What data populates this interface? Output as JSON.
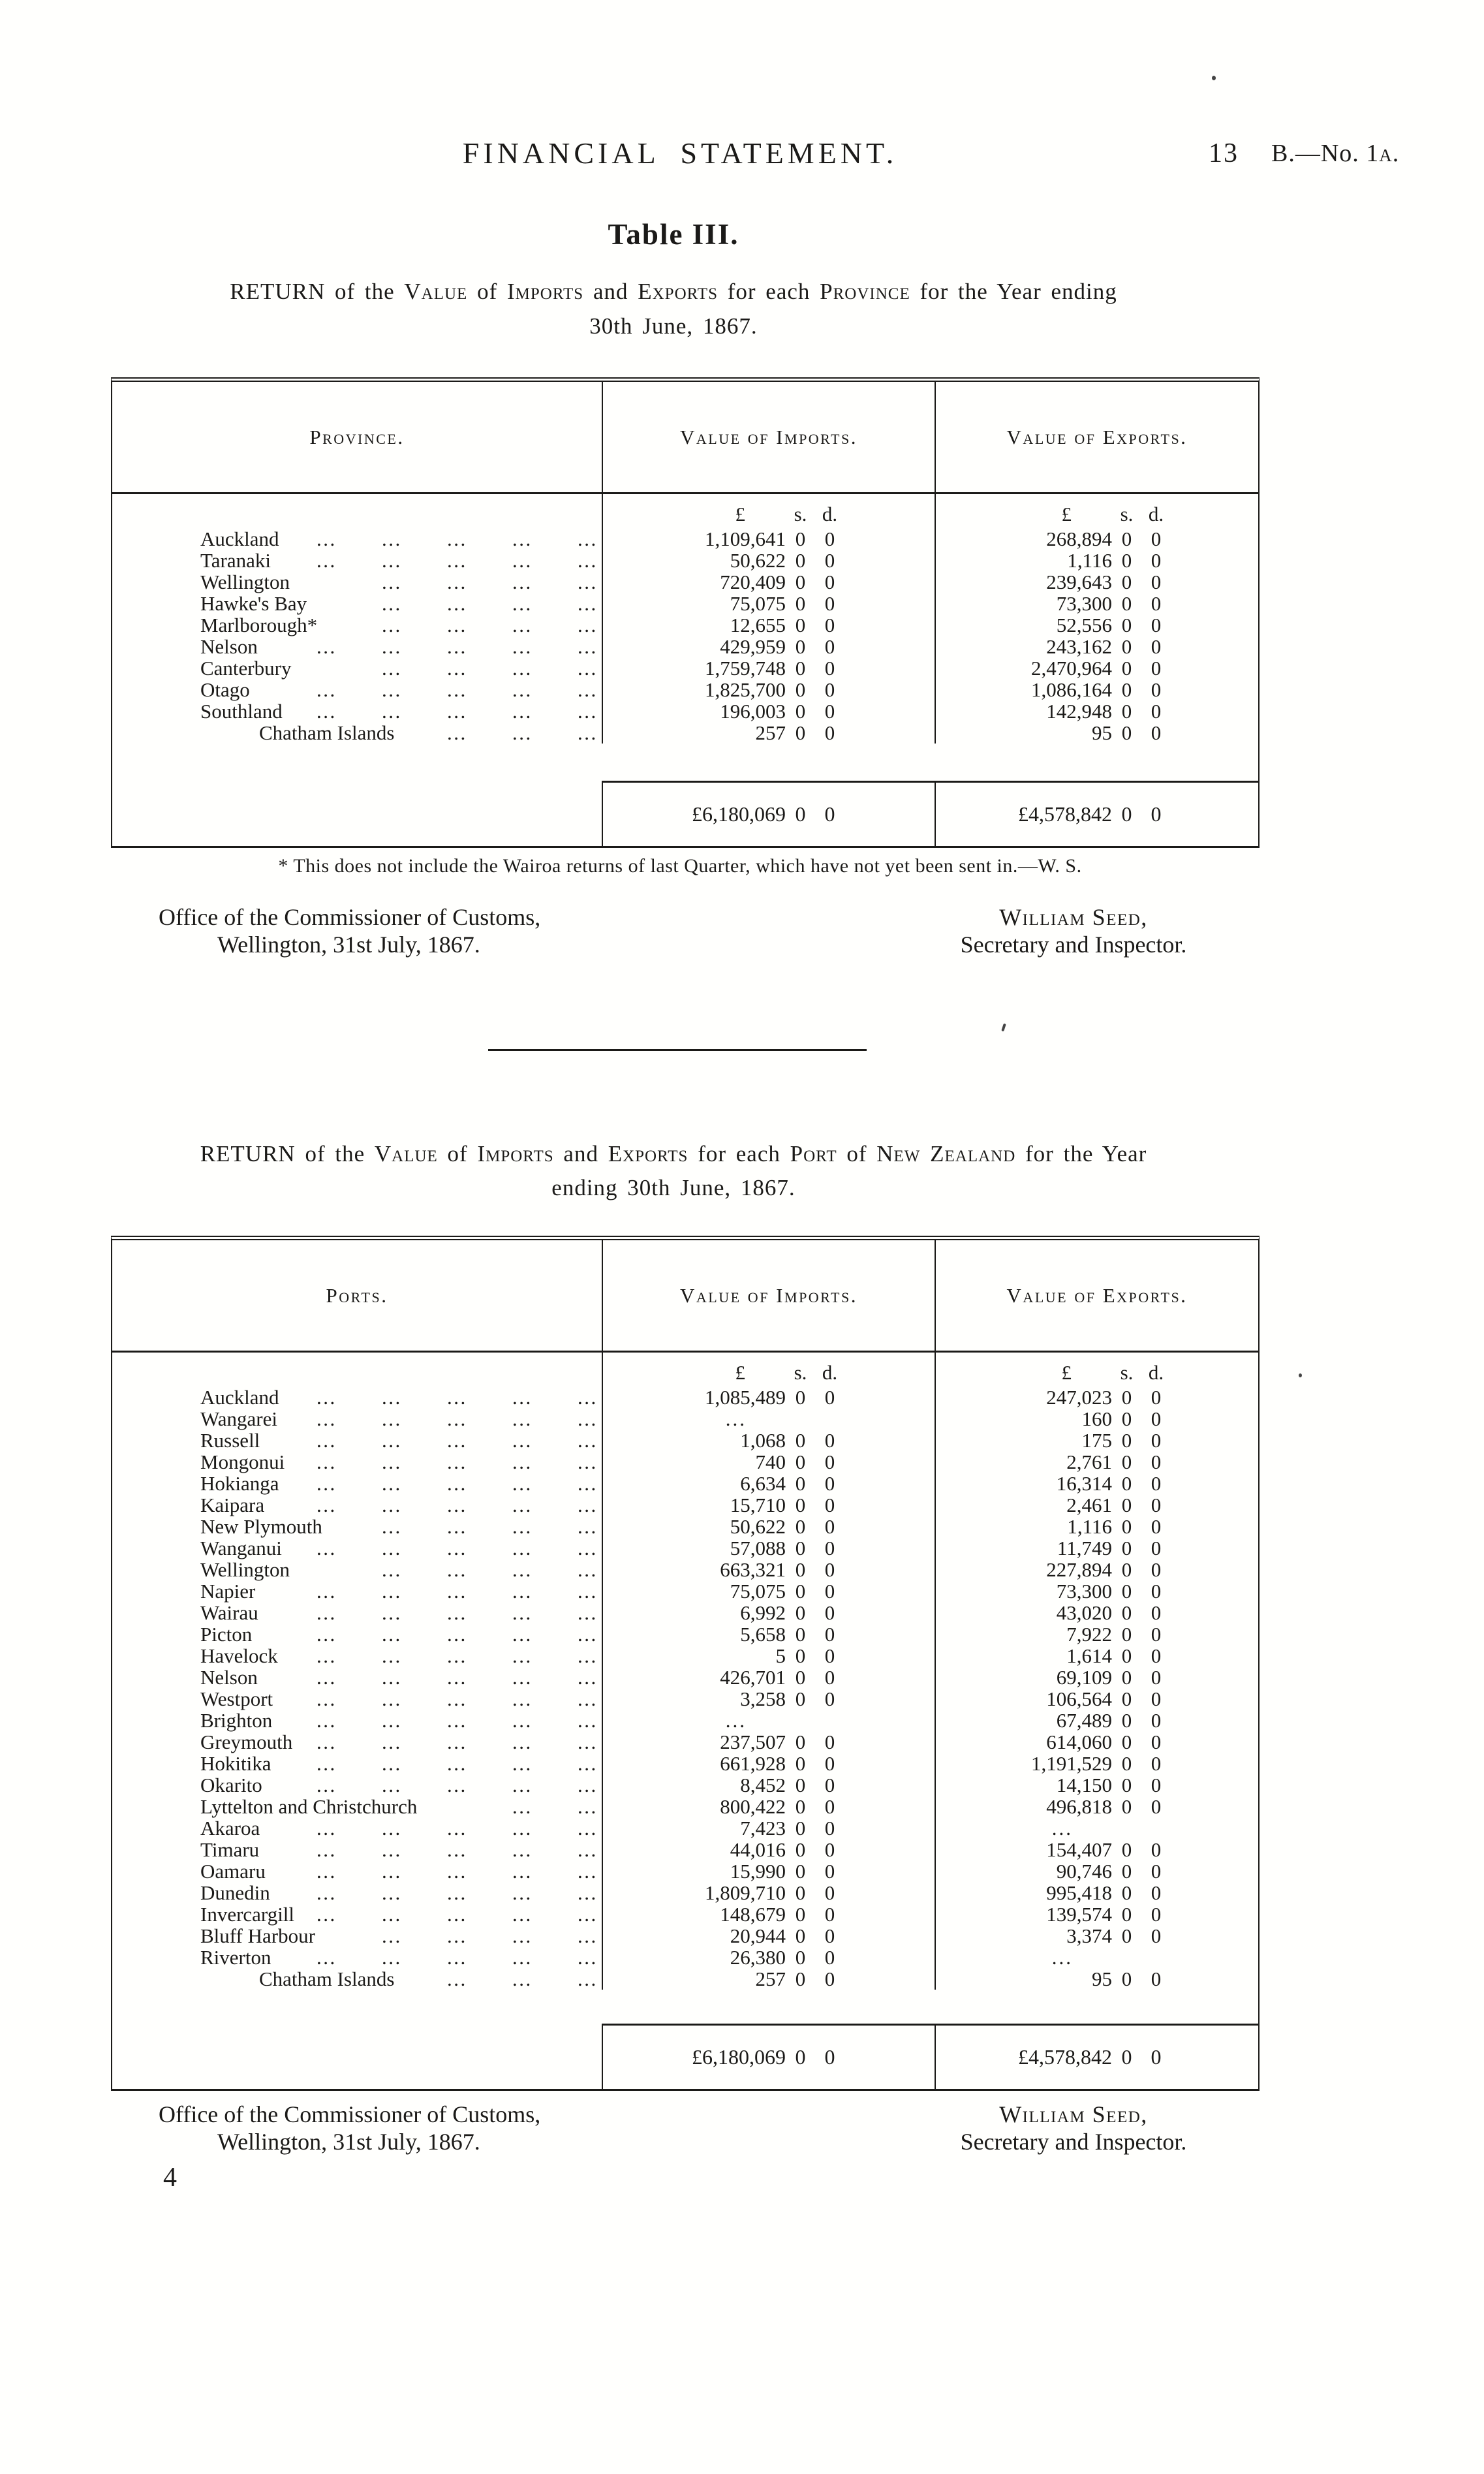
{
  "header": {
    "title": "FINANCIAL STATEMENT.",
    "page_number": "13",
    "doc_ref": [
      {
        "t": "B.—No. 1"
      },
      {
        "t": "a.",
        "sc": true
      }
    ]
  },
  "section1": {
    "table_label": "Table III.",
    "caption_line1": [
      {
        "t": "RETURN"
      },
      {
        "t": " of the "
      },
      {
        "t": "Value",
        "sc": true
      },
      {
        "t": " of "
      },
      {
        "t": "Imports",
        "sc": true
      },
      {
        "t": " and "
      },
      {
        "t": "Exports",
        "sc": true
      },
      {
        "t": " for each "
      },
      {
        "t": "Province",
        "sc": true
      },
      {
        "t": " for the Year ending"
      }
    ],
    "caption_line2": "30th June, 1867.",
    "table": {
      "columns": [
        "Province.",
        "Value of Imports.",
        "Value of Exports."
      ],
      "money_cols": {
        "pound": "£",
        "shillings": "s.",
        "pence": "d."
      },
      "rows": [
        {
          "name": "Auckland",
          "dots": 5,
          "imp": [
            "1,109,641",
            "0",
            "0"
          ],
          "exp": [
            "268,894",
            "0",
            "0"
          ]
        },
        {
          "name": "Taranaki",
          "dots": 5,
          "imp": [
            "50,622",
            "0",
            "0"
          ],
          "exp": [
            "1,116",
            "0",
            "0"
          ]
        },
        {
          "name": "Wellington",
          "dots": 4,
          "imp": [
            "720,409",
            "0",
            "0"
          ],
          "exp": [
            "239,643",
            "0",
            "0"
          ]
        },
        {
          "name": "Hawke's Bay",
          "dots": 4,
          "imp": [
            "75,075",
            "0",
            "0"
          ],
          "exp": [
            "73,300",
            "0",
            "0"
          ]
        },
        {
          "name": "Marlborough*",
          "dots": 4,
          "imp": [
            "12,655",
            "0",
            "0"
          ],
          "exp": [
            "52,556",
            "0",
            "0"
          ]
        },
        {
          "name": "Nelson",
          "dots": 5,
          "imp": [
            "429,959",
            "0",
            "0"
          ],
          "exp": [
            "243,162",
            "0",
            "0"
          ]
        },
        {
          "name": "Canterbury",
          "dots": 4,
          "imp": [
            "1,759,748",
            "0",
            "0"
          ],
          "exp": [
            "2,470,964",
            "0",
            "0"
          ]
        },
        {
          "name": "Otago",
          "dots": 5,
          "imp": [
            "1,825,700",
            "0",
            "0"
          ],
          "exp": [
            "1,086,164",
            "0",
            "0"
          ]
        },
        {
          "name": "Southland",
          "dots": 5,
          "imp": [
            "196,003",
            "0",
            "0"
          ],
          "exp": [
            "142,948",
            "0",
            "0"
          ]
        },
        {
          "name": "Chatham Islands",
          "indent": true,
          "dots": 3,
          "imp": [
            "257",
            "0",
            "0"
          ],
          "exp": [
            "95",
            "0",
            "0"
          ]
        }
      ],
      "totals": {
        "imports": [
          "£6,180,069",
          "0",
          "0"
        ],
        "exports": [
          "£4,578,842",
          "0",
          "0"
        ]
      }
    },
    "footnote": "* This does not include the Wairoa returns of last Quarter, which have not yet been sent in.—W. S.",
    "office": {
      "line1": "Office of the Commissioner of Customs,",
      "line2": "Wellington, 31st July, 1867."
    },
    "signature": {
      "name": "William Seed,",
      "title": "Secretary and Inspector."
    }
  },
  "section2": {
    "caption_line1": [
      {
        "t": "RETURN"
      },
      {
        "t": " of the "
      },
      {
        "t": "Value",
        "sc": true
      },
      {
        "t": " of "
      },
      {
        "t": "Imports",
        "sc": true
      },
      {
        "t": " and "
      },
      {
        "t": "Exports",
        "sc": true
      },
      {
        "t": " for each "
      },
      {
        "t": "Port",
        "sc": true
      },
      {
        "t": " of "
      },
      {
        "t": "New Zealand",
        "sc": true
      },
      {
        "t": " for the Year"
      }
    ],
    "caption_line2": "ending 30th June, 1867.",
    "table": {
      "columns": [
        "Ports.",
        "Value of Imports.",
        "Value of Exports."
      ],
      "money_cols": {
        "pound": "£",
        "shillings": "s.",
        "pence": "d."
      },
      "rows": [
        {
          "name": "Auckland",
          "dots": 5,
          "imp": [
            "1,085,489",
            "0",
            "0"
          ],
          "exp": [
            "247,023",
            "0",
            "0"
          ]
        },
        {
          "name": "Wangarei",
          "dots": 5,
          "imp": null,
          "exp": [
            "160",
            "0",
            "0"
          ]
        },
        {
          "name": "Russell",
          "dots": 5,
          "imp": [
            "1,068",
            "0",
            "0"
          ],
          "exp": [
            "175",
            "0",
            "0"
          ]
        },
        {
          "name": "Mongonui",
          "dots": 5,
          "imp": [
            "740",
            "0",
            "0"
          ],
          "exp": [
            "2,761",
            "0",
            "0"
          ]
        },
        {
          "name": "Hokianga",
          "dots": 5,
          "imp": [
            "6,634",
            "0",
            "0"
          ],
          "exp": [
            "16,314",
            "0",
            "0"
          ]
        },
        {
          "name": "Kaipara",
          "dots": 5,
          "imp": [
            "15,710",
            "0",
            "0"
          ],
          "exp": [
            "2,461",
            "0",
            "0"
          ]
        },
        {
          "name": "New Plymouth",
          "dots": 4,
          "imp": [
            "50,622",
            "0",
            "0"
          ],
          "exp": [
            "1,116",
            "0",
            "0"
          ]
        },
        {
          "name": "Wanganui",
          "dots": 5,
          "imp": [
            "57,088",
            "0",
            "0"
          ],
          "exp": [
            "11,749",
            "0",
            "0"
          ]
        },
        {
          "name": "Wellington",
          "dots": 4,
          "imp": [
            "663,321",
            "0",
            "0"
          ],
          "exp": [
            "227,894",
            "0",
            "0"
          ]
        },
        {
          "name": "Napier",
          "dots": 5,
          "imp": [
            "75,075",
            "0",
            "0"
          ],
          "exp": [
            "73,300",
            "0",
            "0"
          ]
        },
        {
          "name": "Wairau",
          "dots": 5,
          "imp": [
            "6,992",
            "0",
            "0"
          ],
          "exp": [
            "43,020",
            "0",
            "0"
          ]
        },
        {
          "name": "Picton",
          "dots": 5,
          "imp": [
            "5,658",
            "0",
            "0"
          ],
          "exp": [
            "7,922",
            "0",
            "0"
          ]
        },
        {
          "name": "Havelock",
          "dots": 5,
          "imp": [
            "5",
            "0",
            "0"
          ],
          "exp": [
            "1,614",
            "0",
            "0"
          ]
        },
        {
          "name": "Nelson",
          "dots": 5,
          "imp": [
            "426,701",
            "0",
            "0"
          ],
          "exp": [
            "69,109",
            "0",
            "0"
          ]
        },
        {
          "name": "Westport",
          "dots": 5,
          "imp": [
            "3,258",
            "0",
            "0"
          ],
          "exp": [
            "106,564",
            "0",
            "0"
          ]
        },
        {
          "name": "Brighton",
          "dots": 5,
          "imp": null,
          "exp": [
            "67,489",
            "0",
            "0"
          ]
        },
        {
          "name": "Greymouth",
          "dots": 5,
          "imp": [
            "237,507",
            "0",
            "0"
          ],
          "exp": [
            "614,060",
            "0",
            "0"
          ]
        },
        {
          "name": "Hokitika",
          "dots": 5,
          "imp": [
            "661,928",
            "0",
            "0"
          ],
          "exp": [
            "1,191,529",
            "0",
            "0"
          ]
        },
        {
          "name": "Okarito",
          "dots": 5,
          "imp": [
            "8,452",
            "0",
            "0"
          ],
          "exp": [
            "14,150",
            "0",
            "0"
          ]
        },
        {
          "name": "Lyttelton and Christchurch",
          "dots": 2,
          "imp": [
            "800,422",
            "0",
            "0"
          ],
          "exp": [
            "496,818",
            "0",
            "0"
          ]
        },
        {
          "name": "Akaroa",
          "dots": 5,
          "imp": [
            "7,423",
            "0",
            "0"
          ],
          "exp": null
        },
        {
          "name": "Timaru",
          "dots": 5,
          "imp": [
            "44,016",
            "0",
            "0"
          ],
          "exp": [
            "154,407",
            "0",
            "0"
          ]
        },
        {
          "name": "Oamaru",
          "dots": 5,
          "imp": [
            "15,990",
            "0",
            "0"
          ],
          "exp": [
            "90,746",
            "0",
            "0"
          ]
        },
        {
          "name": "Dunedin",
          "dots": 5,
          "imp": [
            "1,809,710",
            "0",
            "0"
          ],
          "exp": [
            "995,418",
            "0",
            "0"
          ]
        },
        {
          "name": "Invercargill",
          "dots": 5,
          "imp": [
            "148,679",
            "0",
            "0"
          ],
          "exp": [
            "139,574",
            "0",
            "0"
          ]
        },
        {
          "name": "Bluff Harbour",
          "dots": 4,
          "imp": [
            "20,944",
            "0",
            "0"
          ],
          "exp": [
            "3,374",
            "0",
            "0"
          ]
        },
        {
          "name": "Riverton",
          "dots": 5,
          "imp": [
            "26,380",
            "0",
            "0"
          ],
          "exp": null
        },
        {
          "name": "Chatham Islands",
          "indent": true,
          "dots": 3,
          "imp": [
            "257",
            "0",
            "0"
          ],
          "exp": [
            "95",
            "0",
            "0"
          ]
        }
      ],
      "totals": {
        "imports": [
          "£6,180,069",
          "0",
          "0"
        ],
        "exports": [
          "£4,578,842",
          "0",
          "0"
        ]
      }
    },
    "office": {
      "line1": "Office of the Commissioner of Customs,",
      "line2": "Wellington, 31st July, 1867."
    },
    "signature": {
      "name": "William Seed,",
      "title": "Secretary and Inspector."
    },
    "page_signature": "4"
  },
  "ink_color": "#1b1a18"
}
